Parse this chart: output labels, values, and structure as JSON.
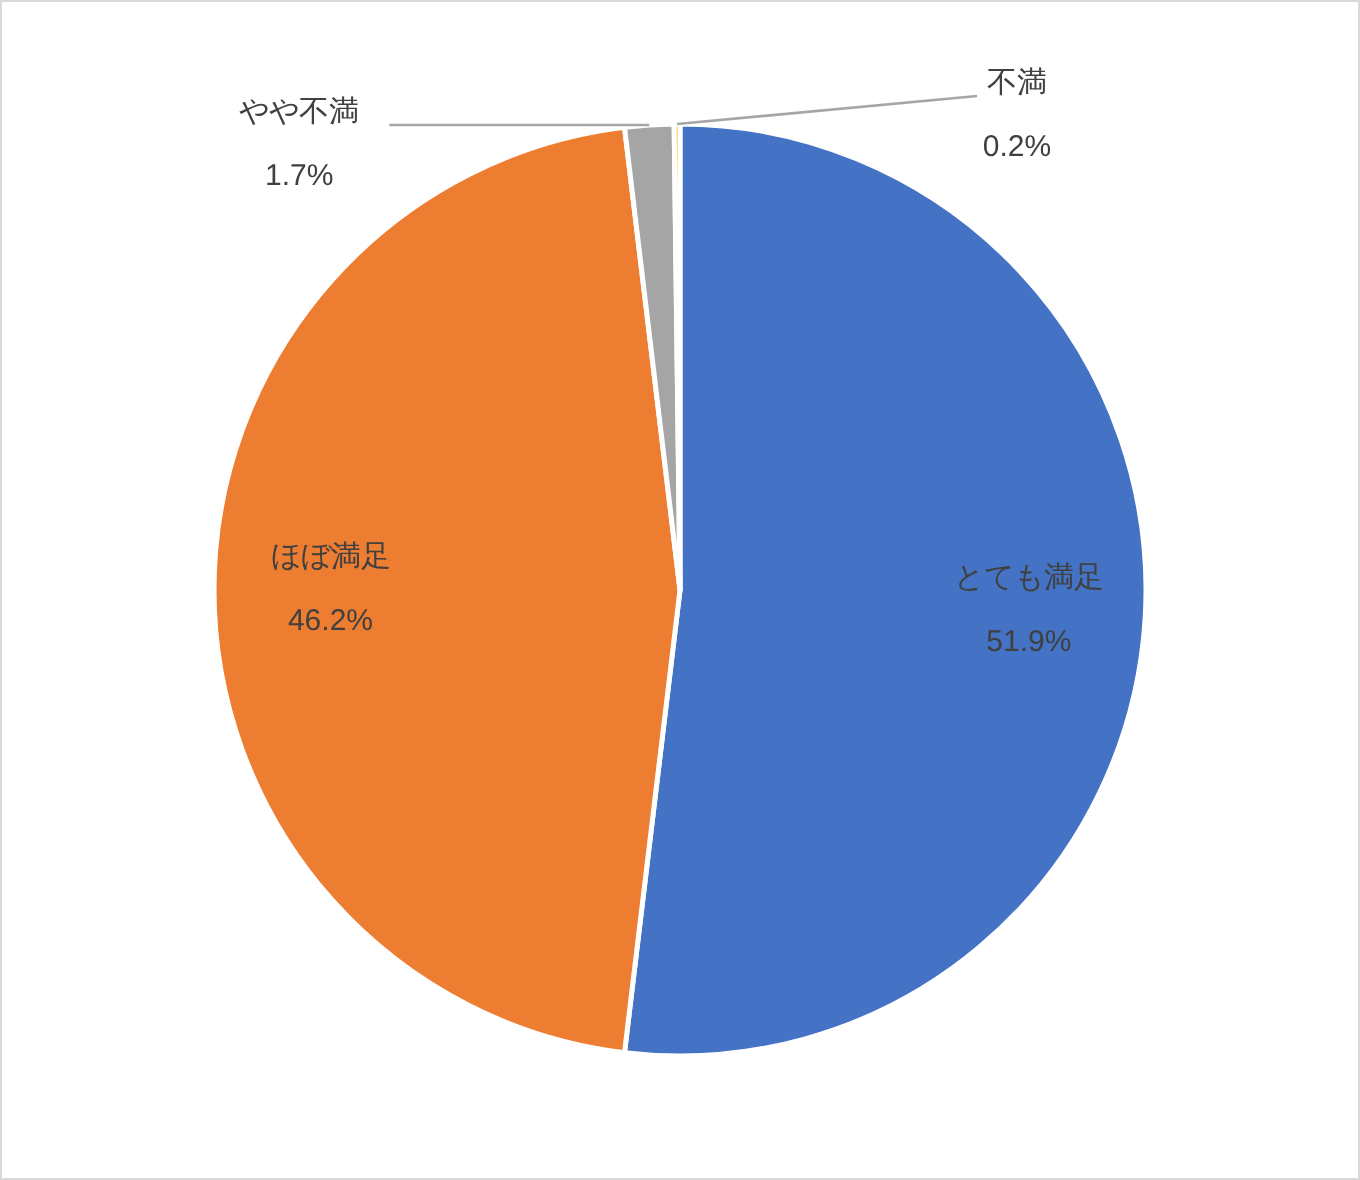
{
  "chart_data": {
    "type": "pie",
    "categories": [
      "とても満足",
      "ほぼ満足",
      "やや不満",
      "不満"
    ],
    "values": [
      51.9,
      46.2,
      1.7,
      0.2
    ],
    "colors": [
      "#4472c4",
      "#ed7d31",
      "#a5a5a5",
      "#ffc000"
    ],
    "value_labels": [
      "51.9%",
      "46.2%",
      "1.7%",
      "0.2%"
    ],
    "legend": false
  }
}
